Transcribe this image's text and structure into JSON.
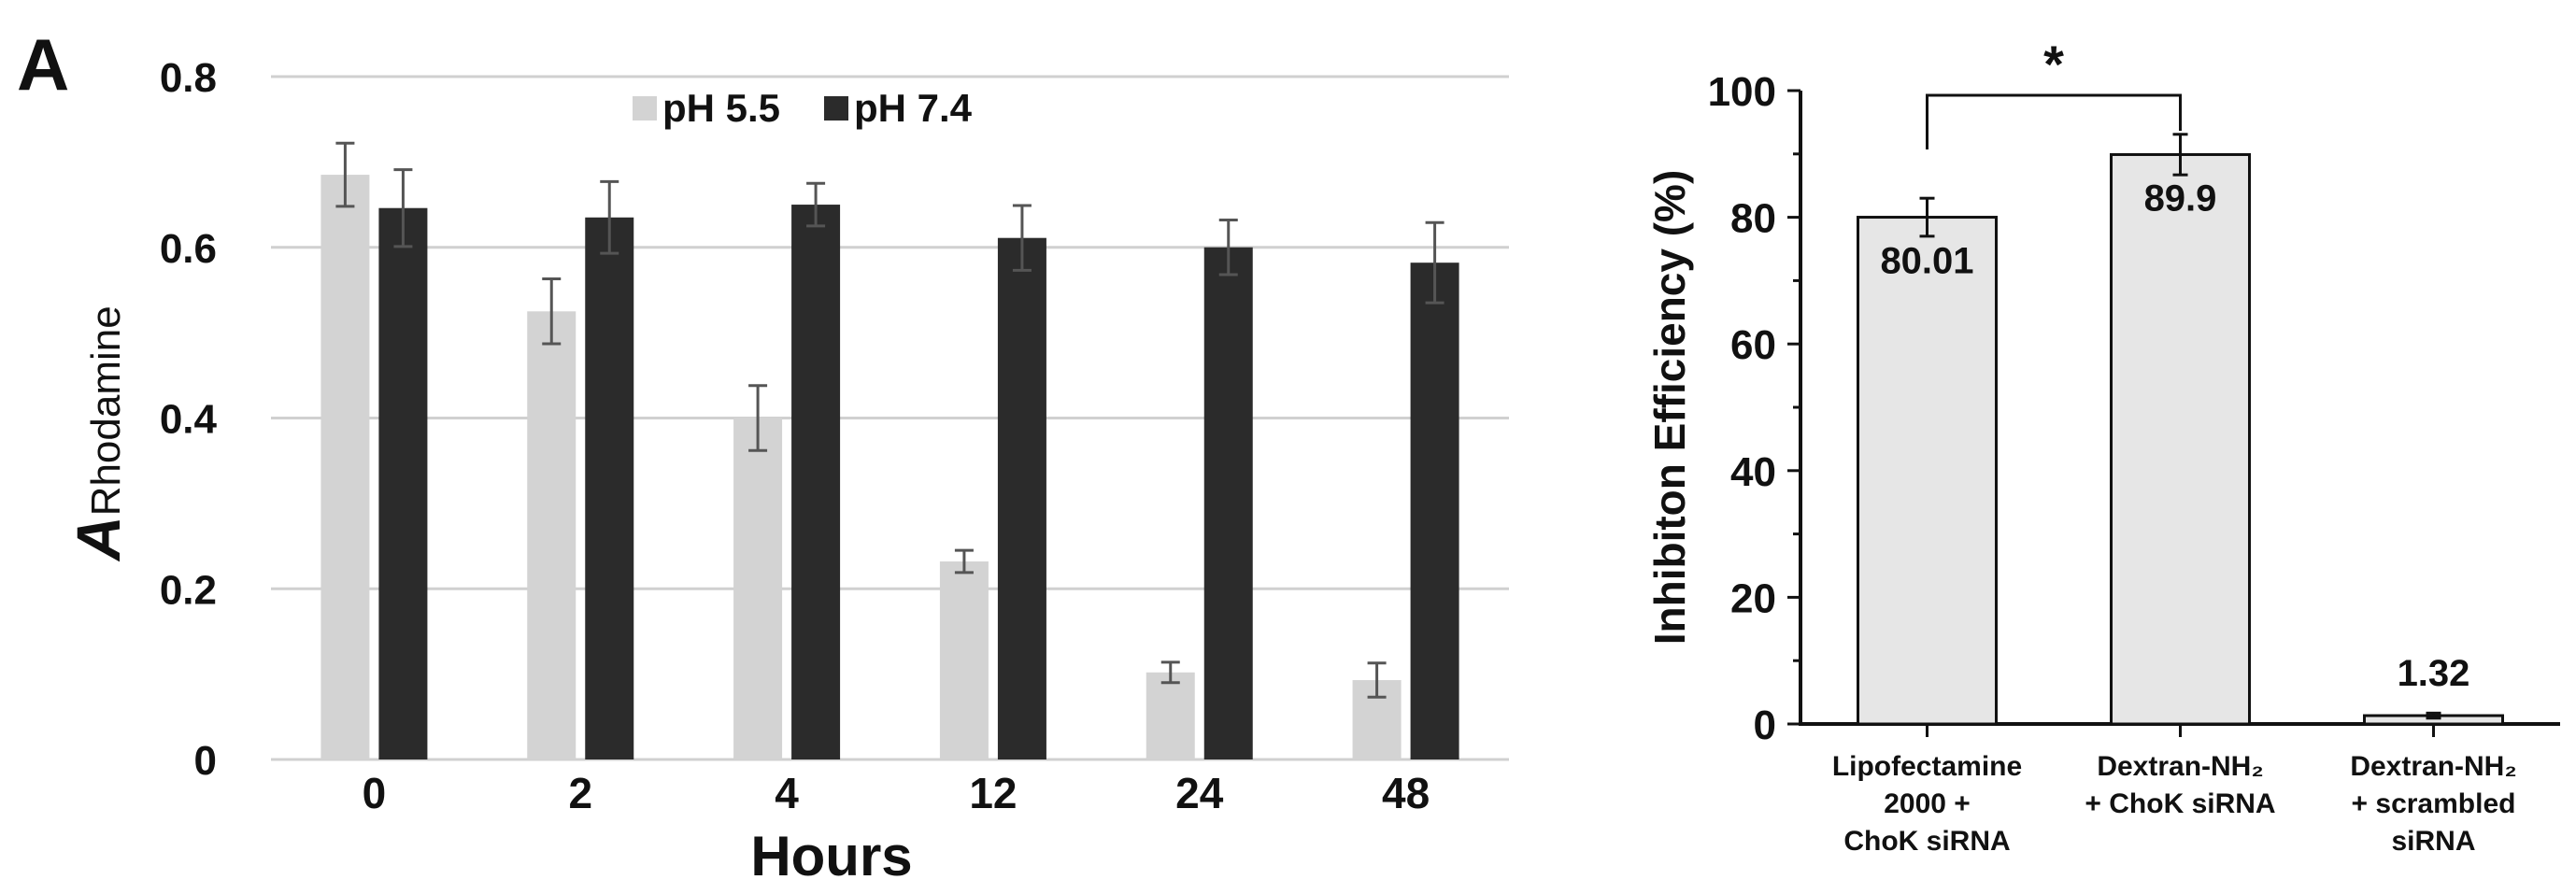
{
  "panel_label": "A",
  "chart_data": [
    {
      "type": "bar",
      "title": "",
      "xlabel": "Hours",
      "ylabel": {
        "main": "A",
        "subscript": "Rhodamine"
      },
      "categories": [
        "0",
        "2",
        "4",
        "12",
        "24",
        "48"
      ],
      "ylim": [
        0,
        0.8
      ],
      "yticks": [
        0,
        0.2,
        0.4,
        0.6,
        0.8
      ],
      "ytick_labels": [
        "0",
        "0.2",
        "0.4",
        "0.6",
        "0.8"
      ],
      "grid": true,
      "legend": "top-center",
      "series": [
        {
          "name": "pH 5.5",
          "color": "#d3d3d3",
          "values": [
            0.685,
            0.525,
            0.4,
            0.232,
            0.102,
            0.093
          ],
          "errors": [
            0.037,
            0.038,
            0.038,
            0.013,
            0.012,
            0.02
          ]
        },
        {
          "name": "pH 7.4",
          "color": "#2b2b2b",
          "values": [
            0.646,
            0.635,
            0.65,
            0.611,
            0.6,
            0.582
          ],
          "errors": [
            0.045,
            0.042,
            0.025,
            0.038,
            0.032,
            0.047
          ]
        }
      ]
    },
    {
      "type": "bar",
      "title": "",
      "xlabel": "",
      "ylabel": "Inhibiton Efficiency (%)",
      "categories": [
        [
          "Lipofectamine",
          "2000 +",
          "ChoK siRNA"
        ],
        [
          "Dextran-NH₂",
          "+ ChoK siRNA"
        ],
        [
          "Dextran-NH₂",
          "+ scrambled",
          "siRNA"
        ]
      ],
      "ylim": [
        0,
        100
      ],
      "yticks": [
        0,
        20,
        40,
        60,
        80,
        100
      ],
      "ytick_labels": [
        "0",
        "20",
        "40",
        "60",
        "80",
        "100"
      ],
      "grid": false,
      "legend": "none",
      "series": [
        {
          "name": "",
          "color": "#e6e6e6",
          "values": [
            80.01,
            89.9,
            1.32
          ],
          "errors": [
            3.0,
            3.2,
            0.4
          ],
          "data_labels": [
            "80.01",
            "89.9",
            "1.32"
          ]
        }
      ],
      "annotation": {
        "text": "*",
        "between": [
          0,
          1
        ]
      }
    }
  ]
}
